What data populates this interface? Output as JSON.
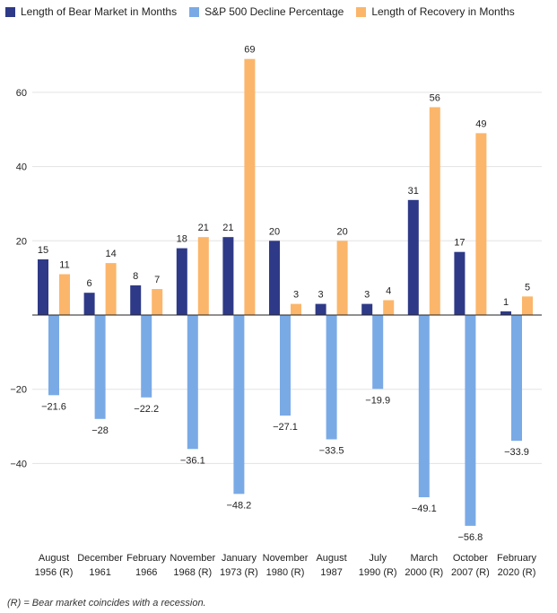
{
  "legend": [
    {
      "label": "Length of Bear Market in Months",
      "color": "#2e3a87"
    },
    {
      "label": "S&P 500 Decline Percentage",
      "color": "#7aaae6"
    },
    {
      "label": "Length of Recovery in Months",
      "color": "#fbb66b"
    }
  ],
  "footnote": "(R) = Bear market coincides with a recession.",
  "chart_data": {
    "type": "bar",
    "categories": [
      [
        "August",
        "1956 (R)"
      ],
      [
        "December",
        "1961"
      ],
      [
        "February",
        "1966"
      ],
      [
        "November",
        "1968 (R)"
      ],
      [
        "January",
        "1973 (R)"
      ],
      [
        "November",
        "1980 (R)"
      ],
      [
        "August",
        "1987"
      ],
      [
        "July",
        "1990 (R)"
      ],
      [
        "March",
        "2000 (R)"
      ],
      [
        "October",
        "2007 (R)"
      ],
      [
        "February",
        "2020 (R)"
      ]
    ],
    "series": [
      {
        "name": "Length of Bear Market in Months",
        "color": "#2e3a87",
        "values": [
          15,
          6,
          8,
          18,
          21,
          20,
          3,
          3,
          31,
          17,
          1
        ],
        "labels": [
          "15",
          "6",
          "8",
          "18",
          "21",
          "20",
          "3",
          "3",
          "31",
          "17",
          "1"
        ]
      },
      {
        "name": "S&P 500 Decline Percentage",
        "color": "#7aaae6",
        "values": [
          -21.6,
          -28,
          -22.2,
          -36.1,
          -48.2,
          -27.1,
          -33.5,
          -19.9,
          -49.1,
          -56.8,
          -33.9
        ],
        "labels": [
          "−21.6",
          "−28",
          "−22.2",
          "−36.1",
          "−48.2",
          "−27.1",
          "−33.5",
          "−19.9",
          "−49.1",
          "−56.8",
          "−33.9"
        ]
      },
      {
        "name": "Length of Recovery in Months",
        "color": "#fbb66b",
        "values": [
          11,
          14,
          7,
          21,
          69,
          3,
          20,
          4,
          56,
          49,
          5
        ],
        "labels": [
          "11",
          "14",
          "7",
          "21",
          "69",
          "3",
          "20",
          "4",
          "56",
          "49",
          "5"
        ]
      }
    ],
    "yticks": [
      60,
      40,
      20,
      0,
      -20,
      -40
    ],
    "ytick_labels": [
      "60",
      "40",
      "20",
      "",
      "−20",
      "−40"
    ],
    "ylim": [
      -62,
      72
    ],
    "grid": true,
    "legend_position": "top-left"
  }
}
